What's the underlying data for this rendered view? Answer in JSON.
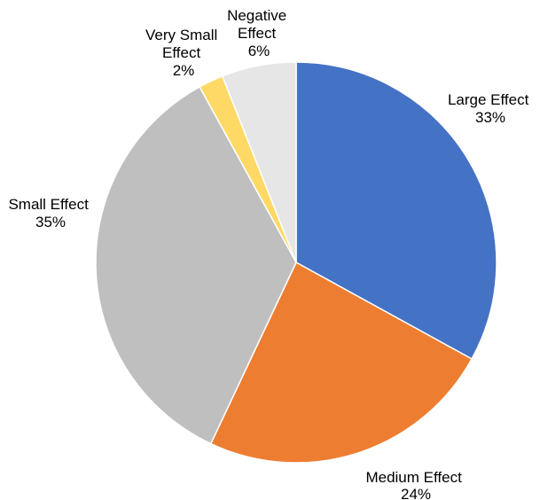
{
  "chart_data": {
    "type": "pie",
    "title": "",
    "slices": [
      {
        "label": "Large Effect",
        "value": 33,
        "value_label": "33%",
        "color": "#4472C4"
      },
      {
        "label": "Medium Effect",
        "value": 24,
        "value_label": "24%",
        "color": "#ED7D31"
      },
      {
        "label": "Small Effect",
        "value": 35,
        "value_label": "35%",
        "color": "#BFBFBF"
      },
      {
        "label": "Very Small Effect",
        "value": 2,
        "value_label": "2%",
        "color": "#FFD966"
      },
      {
        "label": "Negative Effect",
        "value": 6,
        "value_label": "6%",
        "color": "#E7E6E6"
      }
    ],
    "legend": "none",
    "start": "12 o'clock",
    "direction": "clockwise",
    "slice_border_color": "#FFFFFF"
  }
}
